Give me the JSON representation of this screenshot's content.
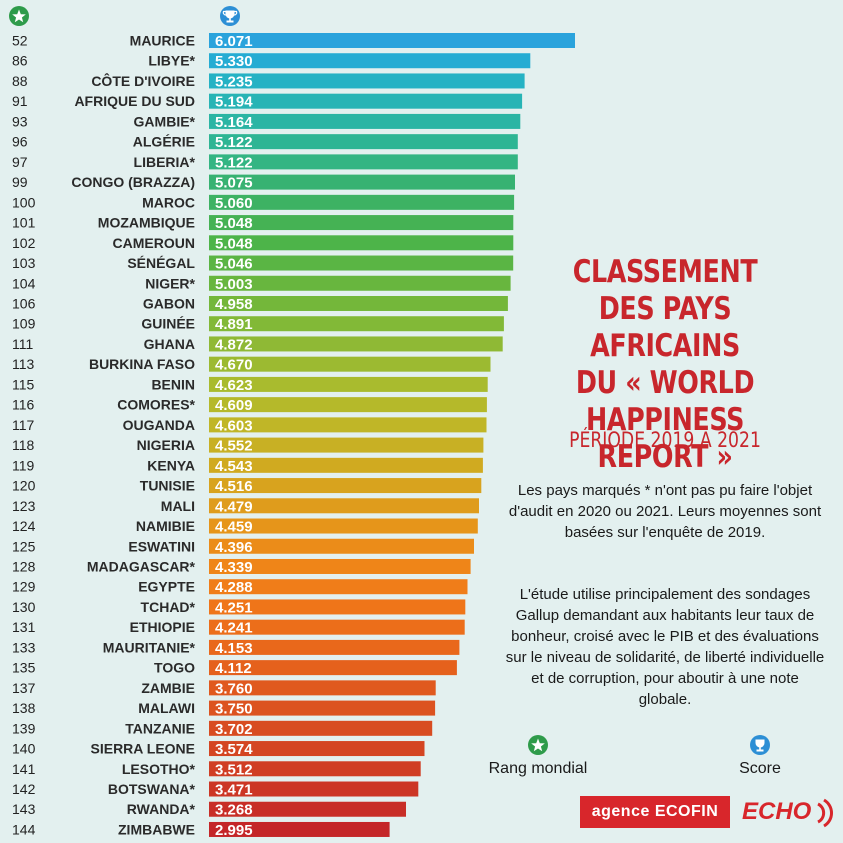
{
  "chart_data": {
    "type": "bar",
    "orientation": "horizontal",
    "title": "CLASSEMENT DES PAYS AFRICAINS DU « WORLD HAPPINESS REPORT »",
    "subtitle": "PÉRIODE 2019 À 2021",
    "columns": [
      "Rang mondial",
      "Score"
    ],
    "categories": [
      "MAURICE",
      "LIBYE*",
      "CÔTE D'IVOIRE",
      "AFRIQUE DU SUD",
      "GAMBIE*",
      "ALGÉRIE",
      "LIBERIA*",
      "CONGO (BRAZZA)",
      "MAROC",
      "MOZAMBIQUE",
      "CAMEROUN",
      "SÉNÉGAL",
      "NIGER*",
      "GABON",
      "GUINÉE",
      "GHANA",
      "BURKINA FASO",
      "BENIN",
      "COMORES*",
      "OUGANDA",
      "NIGERIA",
      "KENYA",
      "TUNISIE",
      "MALI",
      "NAMIBIE",
      "ESWATINI",
      "MADAGASCAR*",
      "EGYPTE",
      "TCHAD*",
      "ETHIOPIE",
      "MAURITANIE*",
      "TOGO",
      "ZAMBIE",
      "MALAWI",
      "TANZANIE",
      "SIERRA LEONE",
      "LESOTHO*",
      "BOTSWANA*",
      "RWANDA*",
      "ZIMBABWE"
    ],
    "ranks": [
      "52",
      "86",
      "88",
      "91",
      "93",
      "96",
      "97",
      "99",
      "100",
      "101",
      "102",
      "103",
      "104",
      "106",
      "109",
      "111",
      "113",
      "115",
      "116",
      "117",
      "118",
      "119",
      "120",
      "123",
      "124",
      "125",
      "128",
      "129",
      "130",
      "131",
      "133",
      "135",
      "137",
      "138",
      "139",
      "140",
      "141",
      "142",
      "143",
      "144"
    ],
    "values": [
      6.071,
      5.33,
      5.235,
      5.194,
      5.164,
      5.122,
      5.122,
      5.075,
      5.06,
      5.048,
      5.048,
      5.046,
      5.003,
      4.958,
      4.891,
      4.872,
      4.67,
      4.623,
      4.609,
      4.603,
      4.552,
      4.543,
      4.516,
      4.479,
      4.459,
      4.396,
      4.339,
      4.288,
      4.251,
      4.241,
      4.153,
      4.112,
      3.76,
      3.75,
      3.702,
      3.574,
      3.512,
      3.471,
      3.268,
      2.995
    ],
    "value_labels": [
      "6.071",
      "5.330",
      "5.235",
      "5.194",
      "5.164",
      "5.122",
      "5.122",
      "5.075",
      "5.060",
      "5.048",
      "5.048",
      "5.046",
      "5.003",
      "4.958",
      "4.891",
      "4.872",
      "4.670",
      "4.623",
      "4.609",
      "4.603",
      "4.552",
      "4.543",
      "4.516",
      "4.479",
      "4.459",
      "4.396",
      "4.339",
      "4.288",
      "4.251",
      "4.241",
      "4.153",
      "4.112",
      "3.760",
      "3.750",
      "3.702",
      "3.574",
      "3.512",
      "3.471",
      "3.268",
      "2.995"
    ],
    "colors": [
      "#2aa3dc",
      "#25acd3",
      "#25b2c4",
      "#27b4b5",
      "#2bb5a4",
      "#2eb594",
      "#33b583",
      "#37b272",
      "#3db263",
      "#45b254",
      "#4db449",
      "#5ab544",
      "#68b63e",
      "#74b73a",
      "#82b937",
      "#8fb935",
      "#9cba31",
      "#a9bb2e",
      "#b5b92a",
      "#c0b627",
      "#c8b024",
      "#d0aa20",
      "#d8a31e",
      "#df9c1c",
      "#e6951a",
      "#eb8c19",
      "#ef8518",
      "#f07d19",
      "#ef7519",
      "#ec6e1a",
      "#e9681b",
      "#e5611c",
      "#e0591e",
      "#dc5320",
      "#d84c21",
      "#d44522",
      "#d03e24",
      "#cc3625",
      "#c82e27",
      "#c42628"
    ],
    "xlim": [
      0,
      6.071
    ]
  },
  "header": {
    "rank_icon": "star-icon",
    "score_icon": "trophy-icon"
  },
  "title_lines": [
    "CLASSEMENT",
    "DES PAYS AFRICAINS",
    "DU « WORLD HAPPINESS",
    "REPORT »"
  ],
  "subtitle": "PÉRIODE 2019 À 2021",
  "note1": "Les pays marqués * n'ont pas pu faire l'objet d'audit en 2020 ou 2021. Leurs moyennes sont basées sur l'enquête de 2019.",
  "note2": "L'étude utilise principalement des sondages Gallup demandant aux habitants leur taux de bonheur, croisé avec le PIB et des évaluations sur le niveau de solidarité, de liberté individuelle et de corruption, pour aboutir à une note globale.",
  "legend": {
    "rank_label": "Rang mondial",
    "score_label": "Score",
    "rank_color": "#2e9b4a",
    "score_color": "#2d8fd5"
  },
  "logos": {
    "ecofin": "agence ECOFIN",
    "echo": "ECHO"
  }
}
